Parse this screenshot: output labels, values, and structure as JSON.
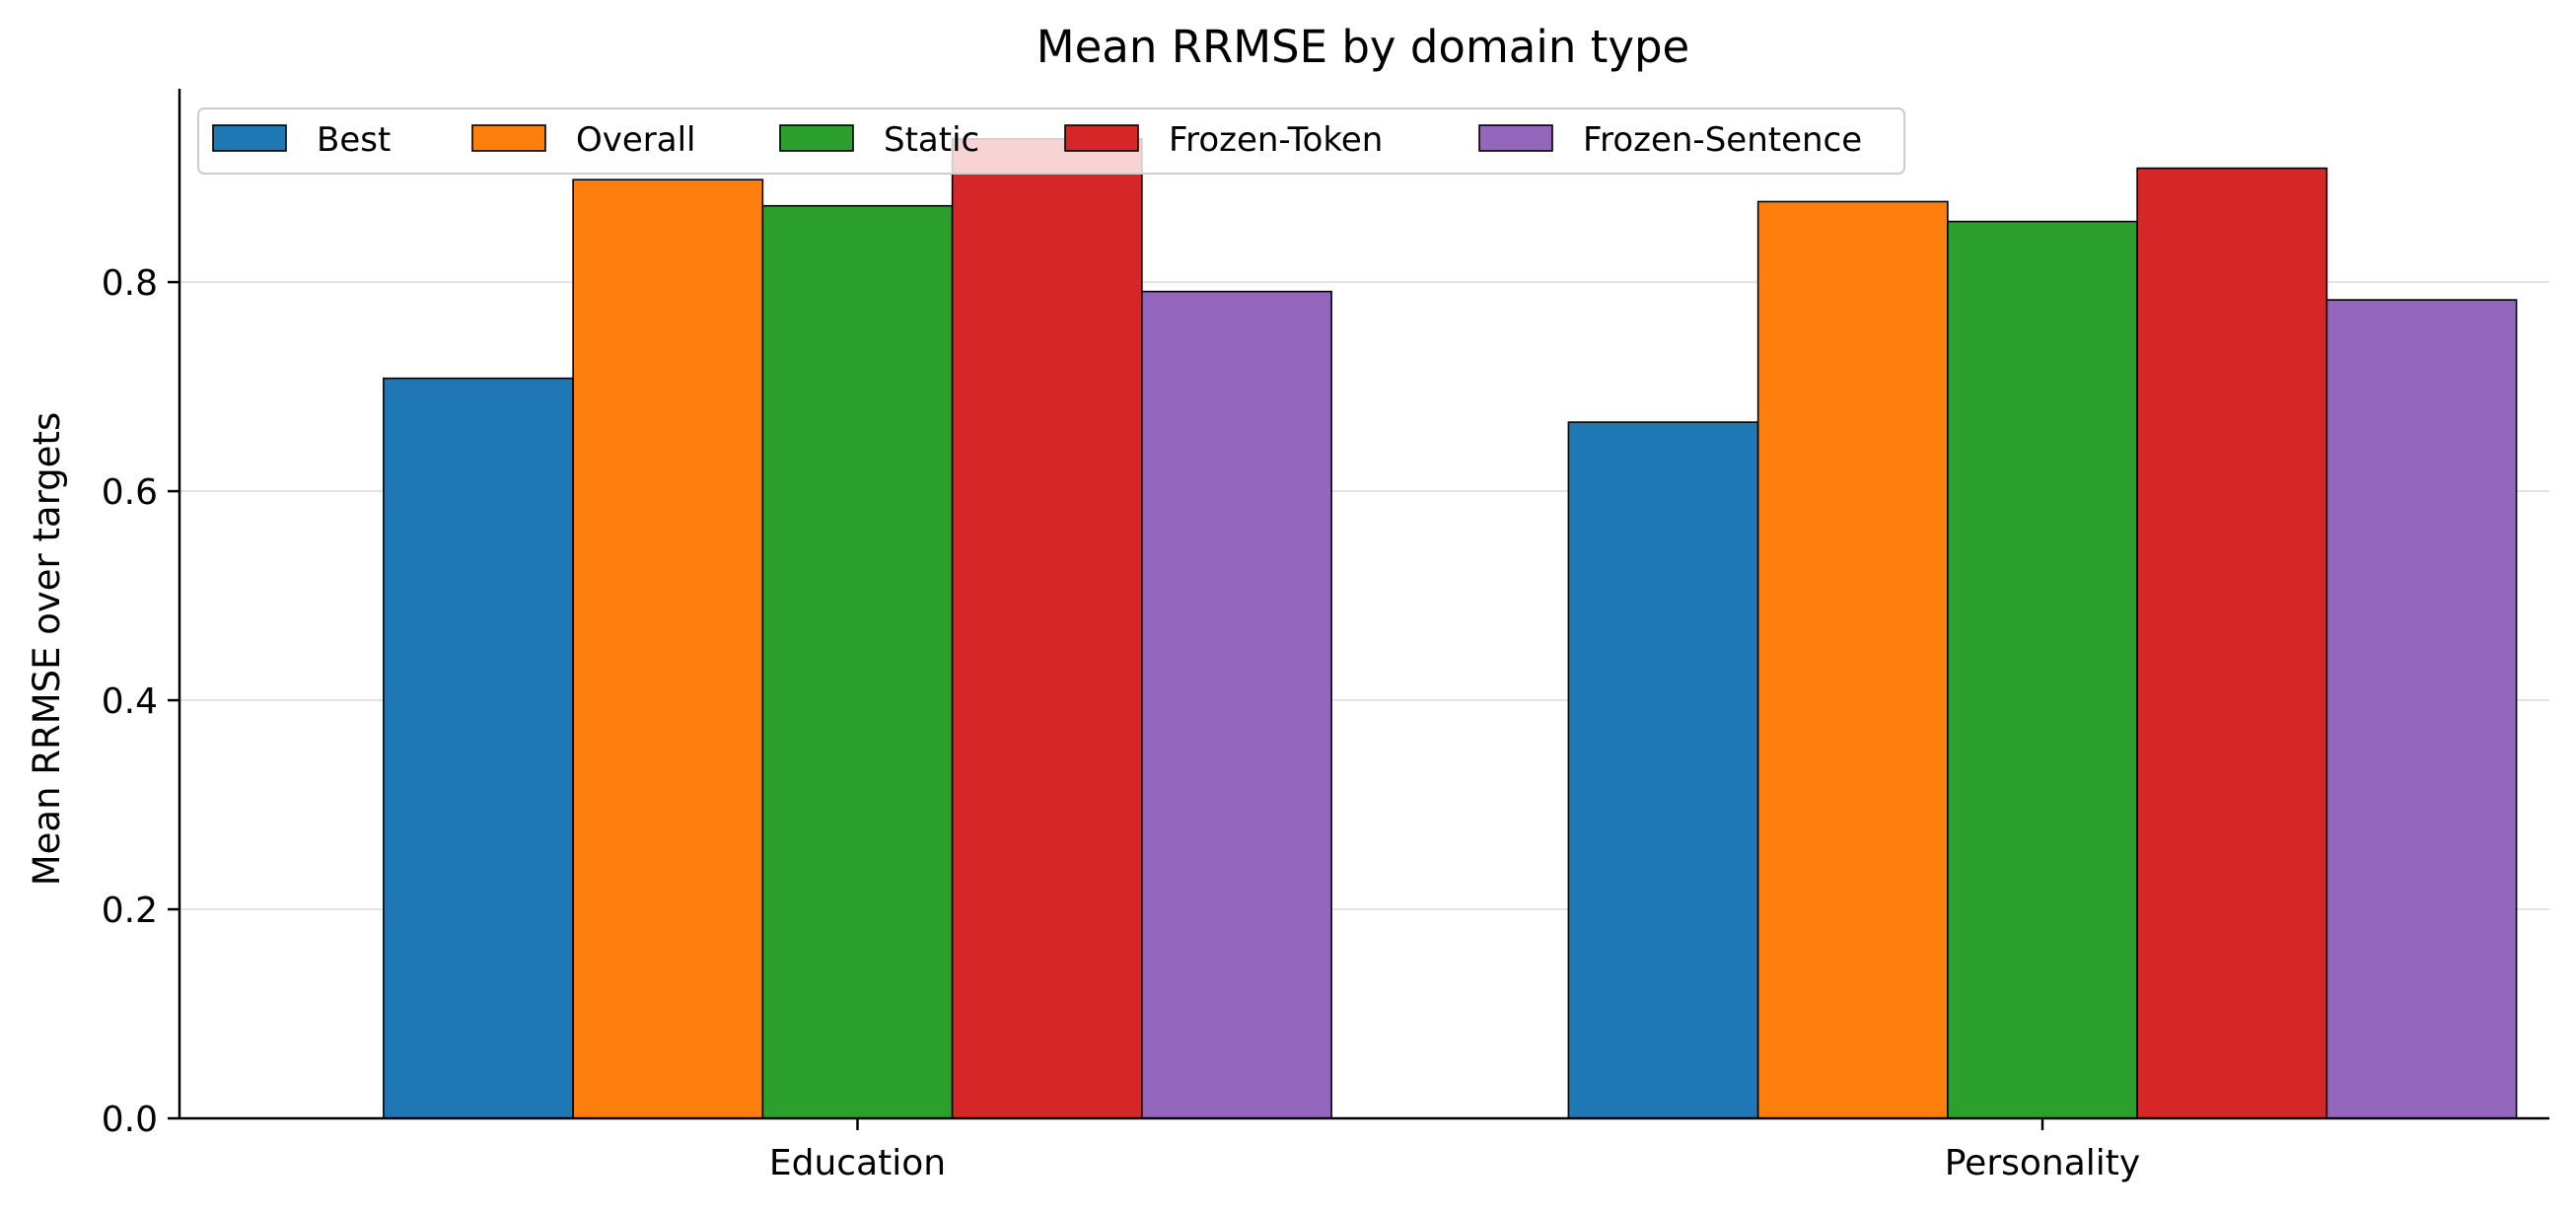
{
  "chart_data": {
    "type": "bar",
    "title": "Mean RRMSE by domain type",
    "xlabel": "",
    "ylabel": "Mean RRMSE over targets",
    "categories": [
      "Education",
      "Personality"
    ],
    "ylim": [
      0,
      0.985
    ],
    "yticks": [
      "0.0",
      "0.2",
      "0.4",
      "0.6",
      "0.8"
    ],
    "grid": "y",
    "legend_position": "top-left",
    "series": [
      {
        "name": "Best",
        "color": "#1f77b4",
        "values": [
          0.708,
          0.666
        ]
      },
      {
        "name": "Overall",
        "color": "#ff7f0e",
        "values": [
          0.898,
          0.877
        ]
      },
      {
        "name": "Static",
        "color": "#2ca02c",
        "values": [
          0.873,
          0.858
        ]
      },
      {
        "name": "Frozen-Token",
        "color": "#d62728",
        "values": [
          0.937,
          0.909
        ]
      },
      {
        "name": "Frozen-Sentence",
        "color": "#9467bd",
        "values": [
          0.791,
          0.783
        ]
      }
    ]
  }
}
